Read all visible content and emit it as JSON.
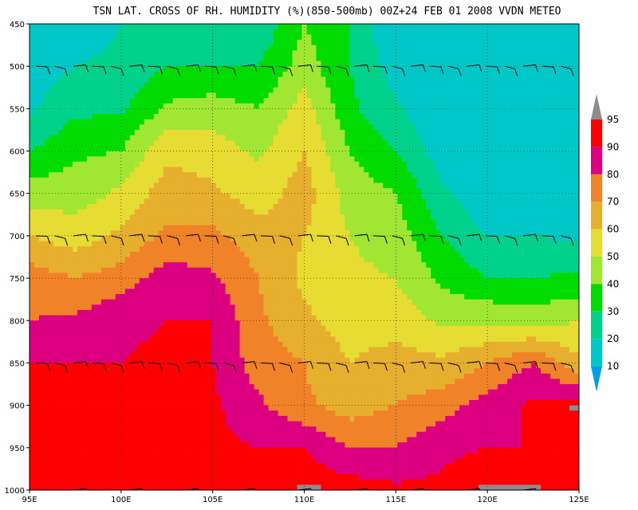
{
  "chart_data": {
    "type": "heatmap",
    "title": "TSN LAT. CROSS OF RH. HUMIDITY (%)(850-500mb) 00Z+24 FEB 01 2008 VVDN METEO",
    "xlabel": "",
    "ylabel": "",
    "x_ticks": [
      "95E",
      "100E",
      "105E",
      "110E",
      "115E",
      "120E",
      "125E"
    ],
    "x_values": [
      95,
      100,
      105,
      110,
      115,
      120,
      125
    ],
    "y_ticks": [
      "450",
      "500",
      "550",
      "600",
      "650",
      "700",
      "750",
      "800",
      "850",
      "900",
      "950",
      "1000"
    ],
    "y_values": [
      450,
      500,
      550,
      600,
      650,
      700,
      750,
      800,
      850,
      900,
      950,
      1000
    ],
    "xlim": [
      95,
      125
    ],
    "ylim": [
      1000,
      450
    ],
    "grid": true,
    "colorbar": {
      "labels": [
        "10",
        "20",
        "30",
        "40",
        "50",
        "60",
        "70",
        "80",
        "90",
        "95"
      ],
      "levels": [
        10,
        20,
        30,
        40,
        50,
        60,
        70,
        80,
        90,
        95
      ],
      "colors": [
        "#00a0e6",
        "#00c8c8",
        "#00d28c",
        "#00dc00",
        "#a0e632",
        "#e6dc32",
        "#e6af2d",
        "#f08228",
        "#dc0080",
        "#ff0000",
        "#8c8c8c"
      ]
    },
    "wind_barb_levels": [
      500,
      700,
      850,
      1000
    ],
    "humidity_profiles": [
      {
        "lon": 95,
        "rh": [
          10,
          15,
          18,
          30,
          45,
          60,
          75,
          80,
          90,
          90,
          90,
          92
        ]
      },
      {
        "lon": 97.5,
        "rh": [
          15,
          20,
          28,
          38,
          45,
          55,
          70,
          82,
          90,
          90,
          92,
          93
        ]
      },
      {
        "lon": 100,
        "rh": [
          20,
          22,
          28,
          40,
          52,
          62,
          75,
          88,
          90,
          92,
          92,
          93
        ]
      },
      {
        "lon": 102.5,
        "rh": [
          22,
          30,
          42,
          58,
          65,
          72,
          85,
          90,
          92,
          95,
          92,
          93
        ]
      },
      {
        "lon": 105,
        "rh": [
          20,
          30,
          45,
          55,
          62,
          72,
          82,
          90,
          90,
          92,
          92,
          93
        ]
      },
      {
        "lon": 107.5,
        "rh": [
          22,
          30,
          40,
          48,
          55,
          65,
          70,
          72,
          75,
          82,
          90,
          92
        ]
      },
      {
        "lon": 110,
        "rh": [
          40,
          45,
          55,
          60,
          65,
          60,
          58,
          62,
          70,
          72,
          90,
          96
        ]
      },
      {
        "lon": 112.5,
        "rh": [
          30,
          30,
          32,
          40,
          45,
          50,
          52,
          55,
          60,
          65,
          80,
          95
        ]
      },
      {
        "lon": 115,
        "rh": [
          10,
          15,
          22,
          30,
          40,
          45,
          50,
          55,
          65,
          70,
          80,
          92
        ]
      },
      {
        "lon": 117.5,
        "rh": [
          10,
          10,
          10,
          15,
          22,
          30,
          38,
          48,
          62,
          75,
          88,
          92
        ]
      },
      {
        "lon": 120,
        "rh": [
          10,
          10,
          10,
          18,
          12,
          20,
          30,
          48,
          70,
          85,
          90,
          96
        ]
      },
      {
        "lon": 122.5,
        "rh": [
          10,
          10,
          10,
          10,
          12,
          20,
          30,
          45,
          80,
          92,
          90,
          96
        ]
      },
      {
        "lon": 125,
        "rh": [
          10,
          10,
          10,
          10,
          10,
          18,
          32,
          50,
          62,
          96,
          90,
          92
        ]
      }
    ]
  }
}
